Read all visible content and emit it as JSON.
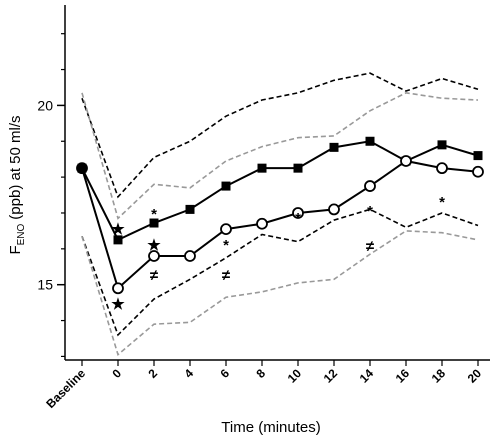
{
  "chart_data": {
    "type": "line",
    "x_label": "Time (minutes)",
    "y_label": {
      "main": "F",
      "sub": "ENO",
      "rest": "(ppb) at 50 ml/s"
    },
    "categories": [
      "Baseline",
      "0",
      "2",
      "4",
      "6",
      "8",
      "10",
      "12",
      "14",
      "16",
      "18",
      "20"
    ],
    "ylim": [
      12.9,
      22.8
    ],
    "yticks": [
      15,
      20
    ],
    "minor_yticks": [
      13,
      14,
      16,
      17,
      18,
      19,
      21,
      22
    ],
    "series": [
      {
        "color": "#000000",
        "dash": true,
        "values": [
          20.2,
          17.45,
          18.55,
          19.0,
          19.7,
          20.15,
          20.35,
          20.7,
          20.9,
          20.4,
          20.75,
          20.45
        ]
      },
      {
        "color": "#999999",
        "dash": true,
        "values": [
          20.35,
          16.85,
          17.8,
          17.7,
          18.45,
          18.85,
          19.1,
          19.15,
          19.85,
          20.35,
          20.2,
          20.15
        ]
      },
      {
        "color": "#000000",
        "dash": true,
        "values": [
          16.35,
          13.6,
          14.6,
          15.15,
          15.75,
          16.4,
          16.2,
          16.8,
          17.1,
          16.6,
          17.0,
          16.65
        ]
      },
      {
        "color": "#999999",
        "dash": true,
        "values": [
          16.35,
          13.05,
          13.9,
          13.95,
          14.65,
          14.8,
          15.05,
          15.15,
          15.85,
          16.5,
          16.45,
          16.25
        ]
      },
      {
        "color": "#000000",
        "marker": "square",
        "values": [
          18.25,
          16.25,
          16.72,
          17.1,
          17.75,
          18.25,
          18.25,
          18.83,
          19.0,
          18.45,
          18.9,
          18.6
        ]
      },
      {
        "color": "#000000",
        "marker": "circle",
        "filled_first": true,
        "values": [
          18.25,
          14.9,
          15.8,
          15.8,
          16.55,
          16.7,
          17.0,
          17.1,
          17.75,
          18.45,
          18.25,
          18.15
        ]
      }
    ],
    "annotations": [
      "★",
      "★",
      "*",
      "★",
      "≠",
      "*",
      "≠",
      "*",
      "*",
      "≠",
      "*",
      "*",
      "≠",
      "*",
      "≠"
    ]
  }
}
